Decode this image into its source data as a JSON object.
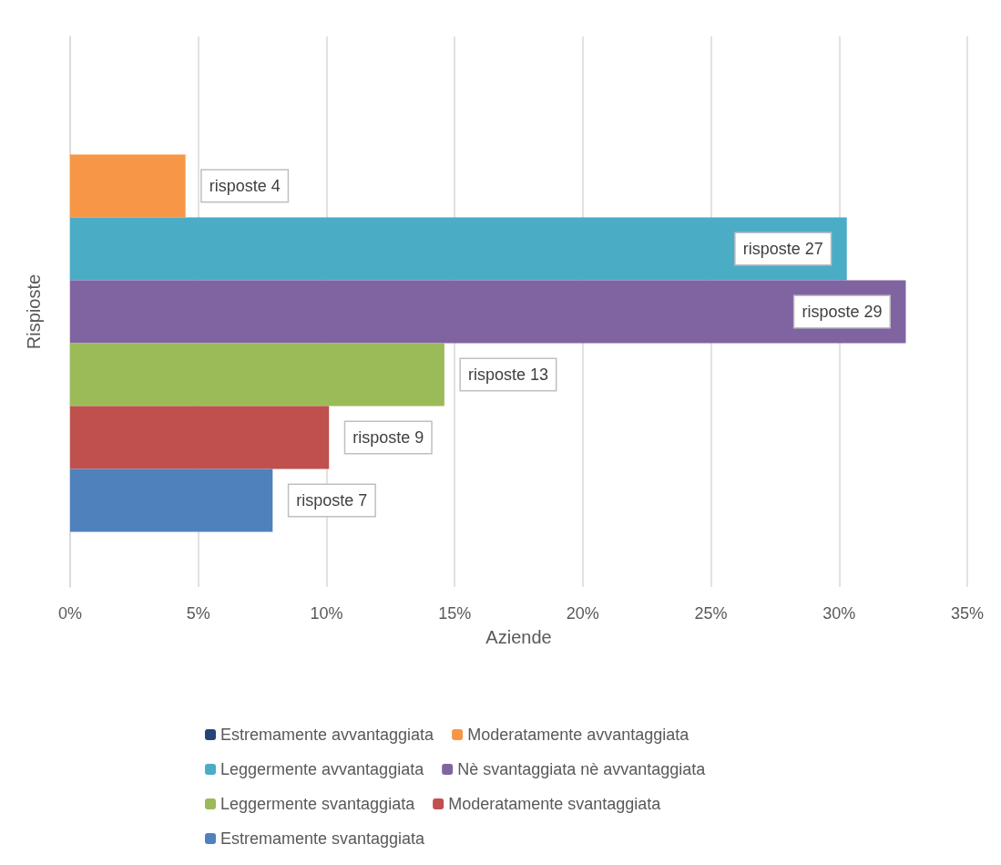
{
  "chart_data": {
    "type": "bar",
    "orientation": "horizontal",
    "xlabel": "Aziende",
    "ylabel": "Rispioste",
    "categories": [
      null
    ],
    "xlim": [
      0,
      35
    ],
    "xticks": [
      {
        "value": 0,
        "label": "0%"
      },
      {
        "value": 5,
        "label": "5%"
      },
      {
        "value": 10,
        "label": "10%"
      },
      {
        "value": 15,
        "label": "15%"
      },
      {
        "value": 20,
        "label": "20%"
      },
      {
        "value": 25,
        "label": "25%"
      },
      {
        "value": 30,
        "label": "30%"
      },
      {
        "value": 35,
        "label": "35%"
      }
    ],
    "grid": "x",
    "legend": "bottom",
    "series": [
      {
        "name": "Estremamente avvantaggiata",
        "color": "#264478",
        "values": [
          0
        ],
        "value_labels": [
          null
        ]
      },
      {
        "name": "Moderatamente avvantaggiata",
        "color": "#f79646",
        "values": [
          4.5
        ],
        "value_labels": [
          "risposte 4"
        ]
      },
      {
        "name": "Leggermente avvantaggiata",
        "color": "#4bacc6",
        "values": [
          30.3
        ],
        "value_labels": [
          "risposte 27"
        ]
      },
      {
        "name": "Nè svantaggiata nè avvantaggiata",
        "color": "#8064a2",
        "values": [
          32.6
        ],
        "value_labels": [
          "risposte 29"
        ]
      },
      {
        "name": "Leggermente svantaggiata",
        "color": "#9bbb59",
        "values": [
          14.6
        ],
        "value_labels": [
          "risposte 13"
        ]
      },
      {
        "name": "Moderatamente svantaggiata",
        "color": "#c0504d",
        "values": [
          10.1
        ],
        "value_labels": [
          "risposte 9"
        ]
      },
      {
        "name": "Estremamente svantaggiata",
        "color": "#4f81bd",
        "values": [
          7.9
        ],
        "value_labels": [
          "risposte 7"
        ]
      }
    ]
  }
}
